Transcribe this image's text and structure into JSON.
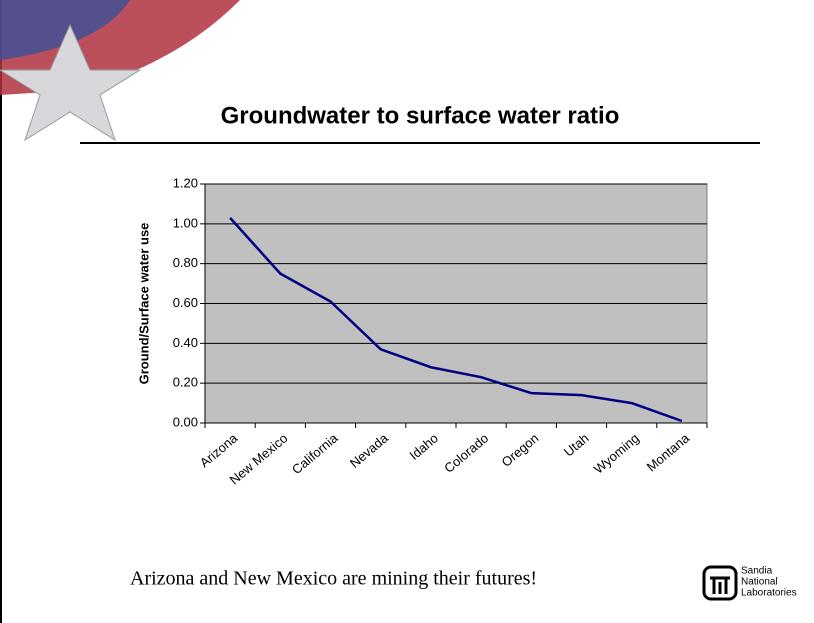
{
  "chart_data": {
    "type": "line",
    "title": "Groundwater to surface water ratio",
    "y_label": "Ground/Surface water use",
    "categories": [
      "Arizona",
      "New Mexico",
      "California",
      "Nevada",
      "Idaho",
      "Colorado",
      "Oregon",
      "Utah",
      "Wyoming",
      "Montana"
    ],
    "series": [
      {
        "color": "#000080",
        "values": [
          1.03,
          0.75,
          0.61,
          0.37,
          0.28,
          0.23,
          0.15,
          0.14,
          0.1,
          0.01
        ]
      }
    ],
    "ylim": [
      0,
      1.2
    ],
    "yticks": [
      {
        "value": 0,
        "label": "0.00"
      },
      {
        "value": 0.2,
        "label": "0.20"
      },
      {
        "value": 0.4,
        "label": "0.40"
      },
      {
        "value": 0.6,
        "label": "0.60"
      },
      {
        "value": 0.8,
        "label": "0.80"
      },
      {
        "value": 1,
        "label": "1.00"
      },
      {
        "value": 1.2,
        "label": "1.20"
      }
    ],
    "grid": true,
    "plot_background": "#c0c0c0",
    "caption": "Arizona and New Mexico are mining their futures!"
  },
  "logo": {
    "lines": [
      "Sandia",
      "National",
      "Laboratories"
    ]
  }
}
